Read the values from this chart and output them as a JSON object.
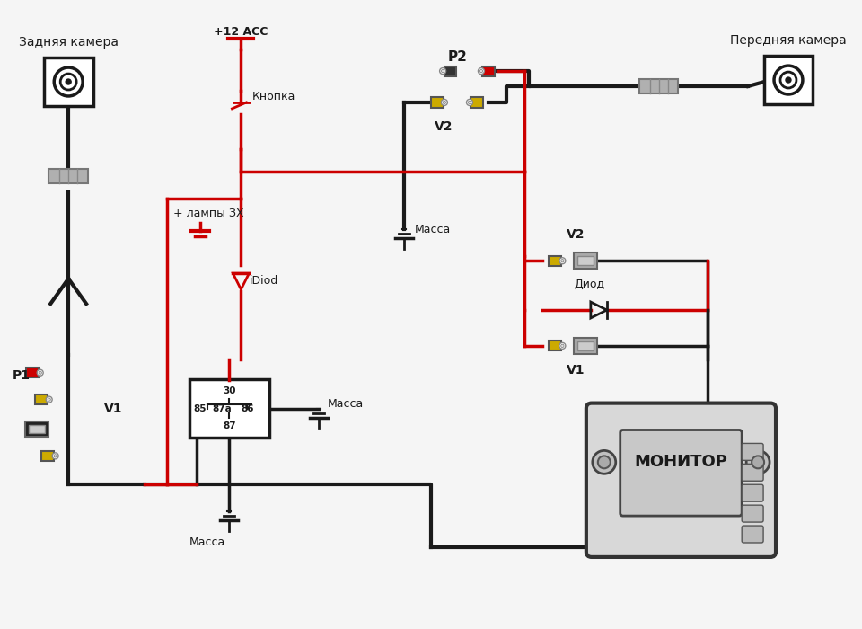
{
  "bg_color": "#f5f5f5",
  "wire_black": "#1a1a1a",
  "wire_red": "#cc0000",
  "wire_yellow": "#ccaa00",
  "conn_gray": "#aaaaaa",
  "conn_yellow": "#ccaa00",
  "conn_red": "#cc0000",
  "conn_black": "#333333",
  "label_rear_cam": "Задняя камера",
  "label_front_cam": "Передняя камера",
  "label_p1": "P1",
  "label_p2": "P2",
  "label_v1": "V1",
  "label_v2": "V2",
  "label_v2b": "V2",
  "label_v1b": "V1",
  "label_monitor": "МОНИТОР",
  "label_button": "Кнопка",
  "label_acc": "+12 ACC",
  "label_lamp": "+ лампы ЗХ",
  "label_idiod": "iDiod",
  "label_diod": "Диод",
  "label_massa1": "Масса",
  "label_massa2": "Масса",
  "label_massa3": "Масса"
}
